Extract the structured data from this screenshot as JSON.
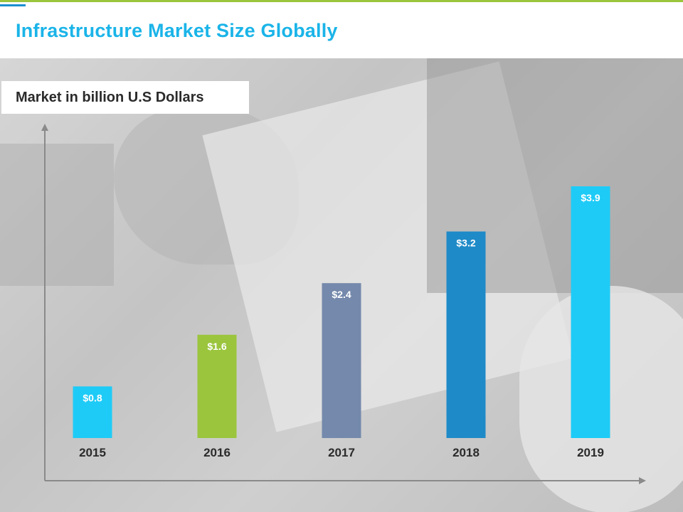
{
  "slide": {
    "title": "Infrastructure Market Size Globally",
    "accent_color": "#1ab4e8"
  },
  "chart_data": {
    "type": "bar",
    "title": "Infrastructure Market Size Globally",
    "ylabel": "Market in billion U.S Dollars",
    "xlabel": "",
    "categories": [
      "2015",
      "2016",
      "2017",
      "2018",
      "2019"
    ],
    "values": [
      0.8,
      1.6,
      2.4,
      3.2,
      3.9
    ],
    "data_labels": [
      "$0.8",
      "$1.6",
      "$2.4",
      "$3.2",
      "$3.9"
    ],
    "bar_colors": [
      "#1ecbf7",
      "#9bc53d",
      "#7489ab",
      "#1f8ac8",
      "#1ecbf7"
    ],
    "ylim": [
      0,
      3.9
    ],
    "grid": false,
    "legend": "none"
  }
}
